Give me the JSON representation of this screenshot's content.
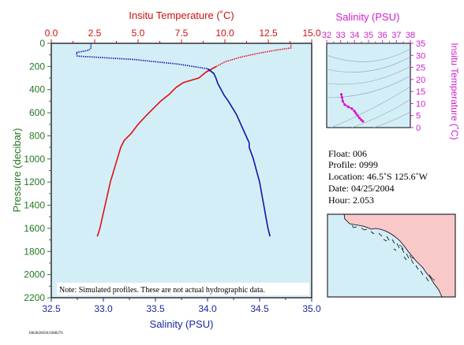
{
  "chart_data": [
    {
      "type": "line",
      "top_axis_label": "Insitu Temperature (˚C)",
      "xlabel": "Salinity (PSU)",
      "ylabel": "Pressure (decibar)",
      "temp_ticks": [
        "0.0",
        "2.5",
        "5.0",
        "7.5",
        "10.0",
        "12.5",
        "15.0"
      ],
      "salinity_ticks": [
        "32.5",
        "33.0",
        "33.5",
        "34.0",
        "34.5",
        "35.0"
      ],
      "pressure_ticks": [
        "0",
        "200",
        "400",
        "600",
        "800",
        "1000",
        "1200",
        "1400",
        "1600",
        "1800",
        "2000",
        "2200"
      ],
      "temp_range": [
        0,
        15
      ],
      "salinity_range": [
        32.5,
        35.0
      ],
      "pressure_range": [
        0,
        2200
      ],
      "note": "Note: Simulated profiles.  These are not actual hydrographic data.",
      "colors": {
        "temperature": "#e01010",
        "salinity": "#0a1aa8",
        "background": "#d4eef8",
        "axis_temp": "#cc1111",
        "axis_sal": "#1a2a99",
        "axis_pressure": "#227722"
      },
      "temperature_series": {
        "pressure": [
          0,
          40,
          60,
          90,
          120,
          160,
          200,
          250,
          300,
          340,
          380,
          440,
          500,
          560,
          620,
          700,
          780,
          840,
          900,
          1000,
          1100,
          1200,
          1300,
          1400,
          1500,
          1600,
          1670
        ],
        "temperature": [
          13.8,
          13.8,
          12.9,
          11.8,
          10.9,
          10.0,
          9.5,
          8.9,
          8.5,
          7.6,
          7.2,
          6.8,
          6.3,
          5.9,
          5.5,
          5.0,
          4.6,
          4.2,
          4.0,
          3.8,
          3.6,
          3.4,
          3.25,
          3.1,
          2.95,
          2.8,
          2.65
        ]
      },
      "salinity_series": {
        "pressure": [
          0,
          40,
          60,
          80,
          110,
          140,
          180,
          220,
          260,
          300,
          350,
          400,
          450,
          500,
          560,
          620,
          700,
          800,
          860,
          900,
          1000,
          1100,
          1200,
          1300,
          1400,
          1500,
          1600,
          1670
        ],
        "salinity": [
          32.88,
          32.88,
          32.86,
          32.74,
          32.75,
          33.3,
          33.72,
          34.0,
          34.06,
          34.08,
          34.1,
          34.13,
          34.16,
          34.2,
          34.24,
          34.28,
          34.32,
          34.37,
          34.4,
          34.4,
          34.44,
          34.47,
          34.5,
          34.52,
          34.54,
          34.56,
          34.58,
          34.6
        ]
      }
    },
    {
      "type": "scatter",
      "title": "Salinity (PSU)",
      "ylabel": "Insitu Temperature (˚C)",
      "x_ticks": [
        "32",
        "33",
        "34",
        "35",
        "36",
        "37",
        "38"
      ],
      "x_tick_values": [
        32,
        33,
        34,
        35,
        36,
        37,
        38
      ],
      "y_ticks": [
        "0",
        "5",
        "10",
        "15",
        "20",
        "25",
        "30",
        "35"
      ],
      "xlim": [
        32,
        38
      ],
      "ylim": [
        0,
        35
      ],
      "colors": {
        "points": "#dd11cc",
        "axis": "#cc22cc",
        "background": "#d4eef8"
      },
      "points": {
        "salinity": [
          33.05,
          33.1,
          33.15,
          33.3,
          33.55,
          33.8,
          34.0,
          34.1,
          34.22,
          34.35,
          34.48,
          34.6
        ],
        "temperature": [
          13.8,
          12.5,
          11.0,
          9.5,
          8.6,
          7.9,
          6.8,
          5.9,
          5.0,
          4.0,
          3.2,
          2.6
        ]
      }
    }
  ],
  "profile_info": {
    "float": "Float:  006",
    "profile": "Profile:  0999",
    "location": "Location:  46.5˚S  125.6˚W",
    "date": "Date:  04/25/2004",
    "hour": "Hour:  2.053"
  },
  "map": {
    "land_color": "#f9c9c9",
    "sea_color": "#d4eef8"
  },
  "footer_id": "1083826658.0388276"
}
